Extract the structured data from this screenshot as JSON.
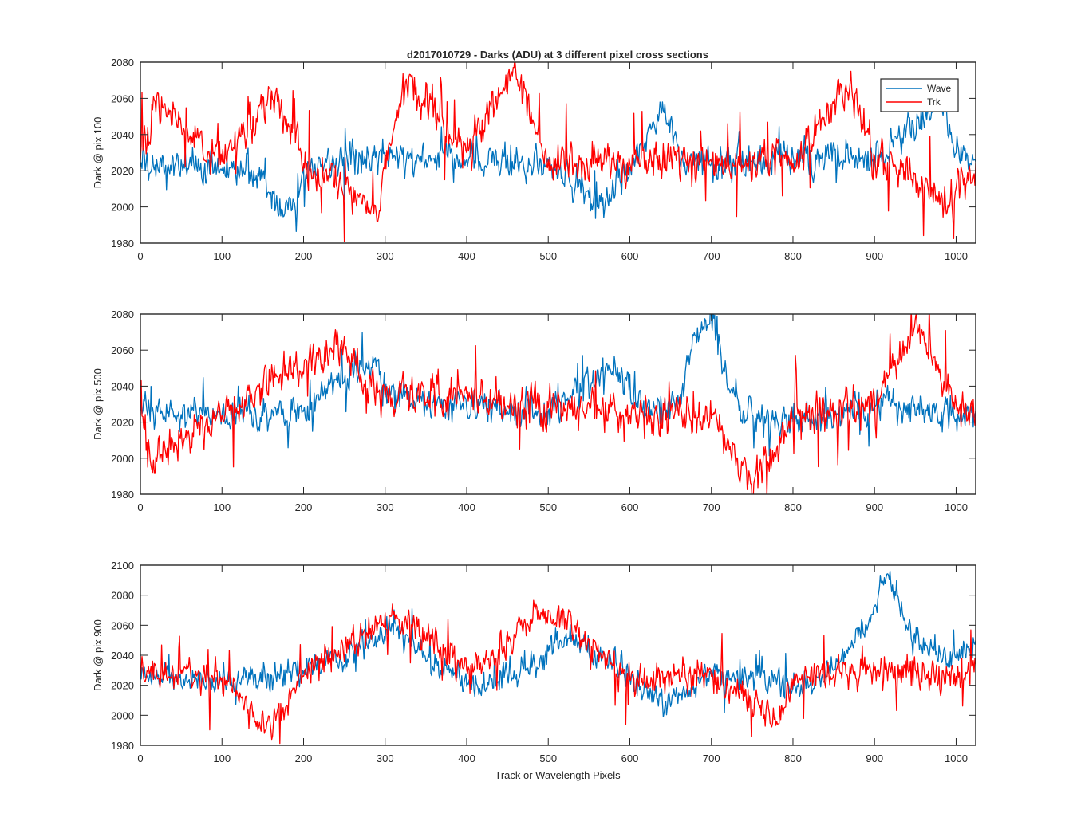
{
  "figure": {
    "title": "d2017010729 - Darks (ADU) at 3 different pixel cross sections",
    "xlabel": "Track or Wavelength Pixels",
    "colors": {
      "wave": "#0072bd",
      "trk": "#ff0000",
      "axes": "#262626",
      "background": "#ffffff"
    }
  },
  "legend": {
    "placement": "top-right of first panel",
    "entries": [
      "Wave",
      "Trk"
    ]
  },
  "chart_data": [
    {
      "type": "line",
      "ylabel": "Dark @ pix 100",
      "xlim": [
        0,
        1024
      ],
      "ylim": [
        1980,
        2080
      ],
      "xticks": [
        0,
        100,
        200,
        300,
        400,
        500,
        600,
        700,
        800,
        900,
        1000
      ],
      "yticks": [
        1980,
        2000,
        2020,
        2040,
        2060,
        2080
      ],
      "grid": false,
      "legend": true,
      "series": [
        {
          "name": "Wave",
          "color": "#0072bd",
          "points": [
            [
              0,
              2022
            ],
            [
              60,
              2024
            ],
            [
              150,
              2018
            ],
            [
              160,
              2008
            ],
            [
              192,
              1997
            ],
            [
              200,
              2022
            ],
            [
              300,
              2028
            ],
            [
              400,
              2026
            ],
            [
              500,
              2024
            ],
            [
              550,
              2005
            ],
            [
              560,
              2000
            ],
            [
              600,
              2022
            ],
            [
              630,
              2045
            ],
            [
              640,
              2058
            ],
            [
              660,
              2030
            ],
            [
              700,
              2024
            ],
            [
              800,
              2028
            ],
            [
              900,
              2026
            ],
            [
              980,
              2058
            ],
            [
              1000,
              2030
            ],
            [
              1024,
              2025
            ]
          ]
        },
        {
          "name": "Trk",
          "color": "#ff0000",
          "points": [
            [
              0,
              2026
            ],
            [
              20,
              2061
            ],
            [
              100,
              2025
            ],
            [
              165,
              2061
            ],
            [
              200,
              2024
            ],
            [
              293,
              1998
            ],
            [
              300,
              2030
            ],
            [
              325,
              2069
            ],
            [
              400,
              2030
            ],
            [
              458,
              2077
            ],
            [
              500,
              2026
            ],
            [
              600,
              2024
            ],
            [
              700,
              2025
            ],
            [
              800,
              2024
            ],
            [
              870,
              2068
            ],
            [
              900,
              2028
            ],
            [
              990,
              2001
            ],
            [
              1024,
              2024
            ]
          ]
        }
      ]
    },
    {
      "type": "line",
      "ylabel": "Dark @ pix 500",
      "xlim": [
        0,
        1024
      ],
      "ylim": [
        1980,
        2080
      ],
      "xticks": [
        0,
        100,
        200,
        300,
        400,
        500,
        600,
        700,
        800,
        900,
        1000
      ],
      "yticks": [
        1980,
        2000,
        2020,
        2040,
        2060,
        2080
      ],
      "grid": false,
      "legend": false,
      "series": [
        {
          "name": "Wave",
          "color": "#0072bd",
          "points": [
            [
              0,
              2026
            ],
            [
              100,
              2024
            ],
            [
              200,
              2026
            ],
            [
              270,
              2052
            ],
            [
              290,
              2055
            ],
            [
              300,
              2034
            ],
            [
              400,
              2028
            ],
            [
              500,
              2026
            ],
            [
              570,
              2050
            ],
            [
              590,
              2050
            ],
            [
              610,
              2028
            ],
            [
              660,
              2030
            ],
            [
              680,
              2068
            ],
            [
              700,
              2079
            ],
            [
              715,
              2050
            ],
            [
              740,
              2024
            ],
            [
              800,
              2020
            ],
            [
              900,
              2030
            ],
            [
              1000,
              2022
            ],
            [
              1024,
              2026
            ]
          ]
        },
        {
          "name": "Trk",
          "color": "#ff0000",
          "points": [
            [
              0,
              2024
            ],
            [
              12,
              1999
            ],
            [
              100,
              2024
            ],
            [
              240,
              2063
            ],
            [
              300,
              2034
            ],
            [
              400,
              2036
            ],
            [
              500,
              2028
            ],
            [
              600,
              2024
            ],
            [
              700,
              2022
            ],
            [
              748,
              1986
            ],
            [
              800,
              2022
            ],
            [
              900,
              2032
            ],
            [
              955,
              2074
            ],
            [
              1000,
              2030
            ],
            [
              1024,
              2026
            ]
          ]
        }
      ]
    },
    {
      "type": "line",
      "ylabel": "Dark @ pix 900",
      "xlabel": "Track or Wavelength Pixels",
      "xlim": [
        0,
        1024
      ],
      "ylim": [
        1980,
        2100
      ],
      "xticks": [
        0,
        100,
        200,
        300,
        400,
        500,
        600,
        700,
        800,
        900,
        1000
      ],
      "yticks": [
        1980,
        2000,
        2020,
        2040,
        2060,
        2080,
        2100
      ],
      "grid": false,
      "legend": false,
      "series": [
        {
          "name": "Wave",
          "color": "#0072bd",
          "points": [
            [
              0,
              2028
            ],
            [
              100,
              2022
            ],
            [
              200,
              2028
            ],
            [
              280,
              2050
            ],
            [
              320,
              2058
            ],
            [
              350,
              2036
            ],
            [
              420,
              2018
            ],
            [
              480,
              2032
            ],
            [
              520,
              2052
            ],
            [
              560,
              2040
            ],
            [
              600,
              2026
            ],
            [
              640,
              2008
            ],
            [
              700,
              2030
            ],
            [
              800,
              2018
            ],
            [
              850,
              2030
            ],
            [
              890,
              2060
            ],
            [
              915,
              2094
            ],
            [
              930,
              2075
            ],
            [
              950,
              2048
            ],
            [
              1000,
              2038
            ],
            [
              1024,
              2050
            ]
          ]
        },
        {
          "name": "Trk",
          "color": "#ff0000",
          "points": [
            [
              0,
              2026
            ],
            [
              100,
              2025
            ],
            [
              153,
              1990
            ],
            [
              200,
              2026
            ],
            [
              310,
              2067
            ],
            [
              400,
              2030
            ],
            [
              500,
              2070
            ],
            [
              600,
              2024
            ],
            [
              700,
              2026
            ],
            [
              780,
              1996
            ],
            [
              800,
              2024
            ],
            [
              900,
              2030
            ],
            [
              1000,
              2026
            ],
            [
              1024,
              2034
            ]
          ]
        }
      ]
    }
  ]
}
